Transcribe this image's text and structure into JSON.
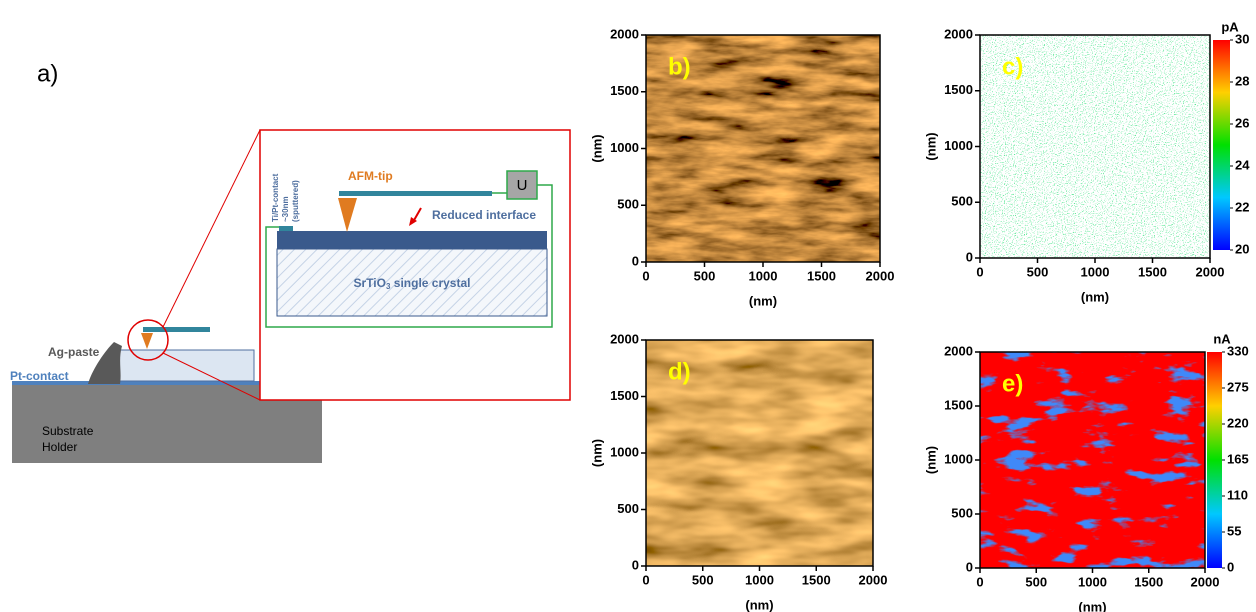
{
  "schematic": {
    "label": "a)",
    "ag_paste": "Ag-paste",
    "pt_contact": "Pt-contact",
    "substrate": [
      "Substrate",
      "Holder"
    ],
    "afm_tip": "AFM-tip",
    "ti_pt": [
      "Ti/Pt-contact",
      "~30nm",
      "(sputtered)"
    ],
    "reduced": "Reduced interface",
    "crystal": "SrTiO",
    "crystal_sub": "3",
    "crystal_rest": " single crystal",
    "u": "U"
  },
  "panels": [
    {
      "label": "b)",
      "xlabel": "(nm)",
      "ylabel": "(nm)",
      "xlim": [
        0,
        2000
      ],
      "ylim": [
        0,
        2000
      ],
      "xticks": [
        0,
        500,
        1000,
        1500,
        2000
      ],
      "yticks": [
        0,
        500,
        1000,
        1500,
        2000
      ]
    },
    {
      "label": "c)",
      "xlabel": "(nm)",
      "ylabel": "(nm)",
      "xlim": [
        0,
        2000
      ],
      "ylim": [
        0,
        2000
      ],
      "xticks": [
        0,
        500,
        1000,
        1500,
        2000
      ],
      "yticks": [
        0,
        500,
        1000,
        1500,
        2000
      ],
      "colorbar": {
        "unit": "pA",
        "lim": [
          20,
          30
        ],
        "ticks": [
          20,
          22,
          24,
          26,
          28,
          30
        ]
      }
    },
    {
      "label": "d)",
      "xlabel": "(nm)",
      "ylabel": "(nm)",
      "xlim": [
        0,
        2000
      ],
      "ylim": [
        0,
        2000
      ],
      "xticks": [
        0,
        500,
        1000,
        1500,
        2000
      ],
      "yticks": [
        0,
        500,
        1000,
        1500,
        2000
      ]
    },
    {
      "label": "e)",
      "xlabel": "(nm)",
      "ylabel": "(nm)",
      "xlim": [
        0,
        2000
      ],
      "ylim": [
        0,
        2000
      ],
      "xticks": [
        0,
        500,
        1000,
        1500,
        2000
      ],
      "yticks": [
        0,
        500,
        1000,
        1500,
        2000
      ],
      "colorbar": {
        "unit": "nA",
        "lim": [
          0,
          330
        ],
        "ticks": [
          0,
          55,
          110,
          165,
          220,
          275,
          330
        ]
      }
    }
  ]
}
